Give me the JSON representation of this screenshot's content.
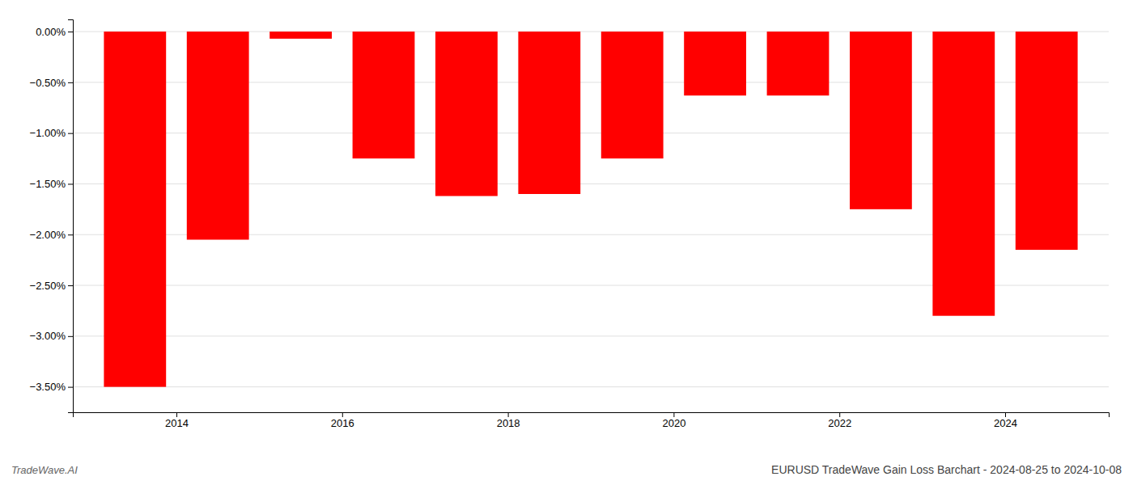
{
  "chart_data": {
    "type": "bar",
    "title": "EURUSD TradeWave Gain Loss Barchart - 2024-08-25 to 2024-10-08",
    "annotations": [
      "TradeWave.AI"
    ],
    "x": [
      2013.5,
      2014.5,
      2015.5,
      2016.5,
      2017.5,
      2018.5,
      2019.5,
      2020.5,
      2021.5,
      2022.5,
      2023.5,
      2024.5
    ],
    "values": [
      -3.5,
      -2.05,
      -0.07,
      -1.25,
      -1.62,
      -1.6,
      -1.25,
      -0.63,
      -0.63,
      -1.75,
      -2.8,
      -2.15
    ],
    "color": "#ff0000",
    "xlim": [
      2012.75,
      2025.25
    ],
    "xticks": [
      2014,
      2016,
      2018,
      2020,
      2022,
      2024
    ],
    "ylim": [
      -3.75,
      0.12
    ],
    "yticks": [
      {
        "value": 0.0,
        "label": "0.00%"
      },
      {
        "value": -0.5,
        "label": "−0.50%"
      },
      {
        "value": -1.0,
        "label": "−1.00%"
      },
      {
        "value": -1.5,
        "label": "−1.50%"
      },
      {
        "value": -2.0,
        "label": "−2.00%"
      },
      {
        "value": -2.5,
        "label": "−2.50%"
      },
      {
        "value": -3.0,
        "label": "−3.00%"
      },
      {
        "value": -3.5,
        "label": "−3.50%"
      }
    ],
    "grid": true
  }
}
